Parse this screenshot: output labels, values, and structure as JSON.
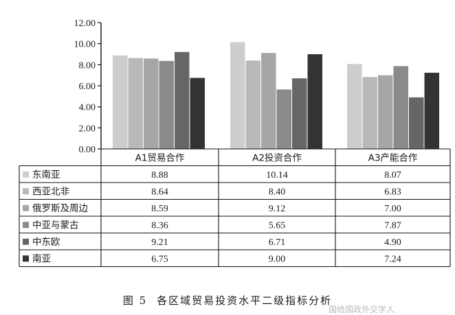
{
  "chart_data": {
    "type": "bar",
    "categories": [
      "A1贸易合作",
      "A2投资合作",
      "A3产能合作"
    ],
    "series": [
      {
        "name": "东南亚",
        "values": [
          8.88,
          10.14,
          8.07
        ],
        "color": "#cdcdcd"
      },
      {
        "name": "西亚北非",
        "values": [
          8.64,
          8.4,
          6.83
        ],
        "color": "#b9b9b9"
      },
      {
        "name": "俄罗斯及周边",
        "values": [
          8.59,
          9.12,
          7.0
        ],
        "color": "#a6a6a6"
      },
      {
        "name": "中亚与蒙古",
        "values": [
          8.36,
          5.65,
          7.87
        ],
        "color": "#8a8a8a"
      },
      {
        "name": "中东欧",
        "values": [
          9.21,
          6.71,
          4.9
        ],
        "color": "#666666"
      },
      {
        "name": "南亚",
        "values": [
          6.75,
          9.0,
          7.24
        ],
        "color": "#333333"
      }
    ],
    "cell_text": [
      [
        "8.88",
        "10.14",
        "8.07"
      ],
      [
        "8.64",
        "8.40",
        "6.83"
      ],
      [
        "8.59",
        "9.12",
        "7.00"
      ],
      [
        "8.36",
        "5.65",
        "7.87"
      ],
      [
        "9.21",
        "6.71",
        "4.90"
      ],
      [
        "6.75",
        "9.00",
        "7.24"
      ]
    ],
    "yticks": [
      "0.00",
      "2.00",
      "4.00",
      "6.00",
      "8.00",
      "10.00",
      "12.00"
    ],
    "ylim": [
      0,
      12
    ],
    "legend_placement": "table-left"
  },
  "caption": {
    "fig_no": "图 5",
    "text": "各区域贸易投资水平二级指标分析"
  },
  "watermark": "国给国政外交学人"
}
